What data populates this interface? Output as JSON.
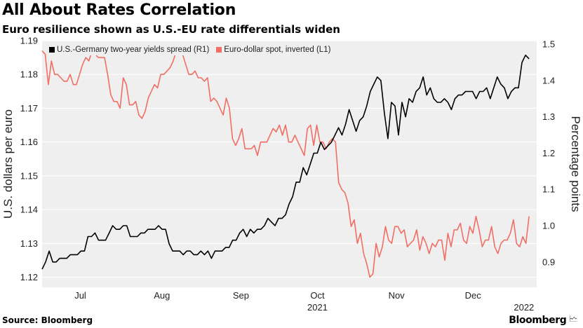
{
  "header": {
    "title": "All About Rates Correlation",
    "subtitle": "Euro resilience shown as U.S.-EU rate differentials widen"
  },
  "footer": {
    "source": "Source: Bloomberg",
    "brand": "Bloomberg",
    "brand_icon": "chart-icon"
  },
  "colors": {
    "spread": "#000000",
    "euro": "#f06e63",
    "plot_bg": "#efefef",
    "gridline": "#ffffff"
  },
  "chart_data": {
    "type": "line",
    "title": "All About Rates Correlation",
    "subtitle": "Euro resilience shown as U.S.-EU rate differentials widen",
    "legend_position": "top-left",
    "grid": true,
    "x_ticks": [
      {
        "date": "2021-07-15",
        "label": "Jul"
      },
      {
        "date": "2021-08-16",
        "label": "Aug"
      },
      {
        "date": "2021-09-16",
        "label": "Sep"
      },
      {
        "date": "2021-10-16",
        "label": "Oct"
      },
      {
        "date": "2021-11-16",
        "label": "Nov"
      },
      {
        "date": "2021-12-16",
        "label": "Dec"
      }
    ],
    "x_year_labels": [
      {
        "date": "2021-10-16",
        "label": "2021"
      },
      {
        "date": "2022-01-05",
        "label": "2022"
      }
    ],
    "x_range": [
      "2021-06-30",
      "2022-01-10"
    ],
    "y_left": {
      "label": "U.S. dollars per euro",
      "inverted": true,
      "range": [
        1.19,
        1.117
      ],
      "ticks": [
        1.19,
        1.18,
        1.17,
        1.16,
        1.15,
        1.14,
        1.13,
        1.12
      ]
    },
    "y_right": {
      "label": "Percentage points",
      "range": [
        0.83,
        1.51
      ],
      "ticks": [
        1.5,
        1.4,
        1.3,
        1.2,
        1.1,
        1.0,
        0.9
      ]
    },
    "series": [
      {
        "name": "U.S.-Germany two-year yields spread (R1)",
        "axis": "right",
        "color": "#000000",
        "start": "2021-06-30",
        "values": [
          0.88,
          0.9,
          0.93,
          0.9,
          0.9,
          0.91,
          0.91,
          0.91,
          0.92,
          0.92,
          0.92,
          0.93,
          0.93,
          0.97,
          0.97,
          0.98,
          0.96,
          0.96,
          0.96,
          0.98,
          1.0,
          0.99,
          0.99,
          1.0,
          1.0,
          0.97,
          0.97,
          0.97,
          0.98,
          0.98,
          0.99,
          0.99,
          0.99,
          1.0,
          0.99,
          0.99,
          0.95,
          0.93,
          0.93,
          0.93,
          0.92,
          0.93,
          0.93,
          0.92,
          0.92,
          0.93,
          0.92,
          0.93,
          0.91,
          0.93,
          0.93,
          0.93,
          0.94,
          0.94,
          0.96,
          0.96,
          0.98,
          0.99,
          0.97,
          0.99,
          0.98,
          0.99,
          0.99,
          1.0,
          1.02,
          1.01,
          1.0,
          1.02,
          1.02,
          1.03,
          1.06,
          1.08,
          1.12,
          1.12,
          1.16,
          1.14,
          1.17,
          1.2,
          1.2,
          1.23,
          1.21,
          1.22,
          1.23,
          1.25,
          1.27,
          1.25,
          1.28,
          1.32,
          1.29,
          1.26,
          1.29,
          1.3,
          1.33,
          1.37,
          1.39,
          1.41,
          1.4,
          1.31,
          1.24,
          1.34,
          1.33,
          1.25,
          1.34,
          1.3,
          1.35,
          1.34,
          1.37,
          1.38,
          1.41,
          1.36,
          1.38,
          1.35,
          1.34,
          1.34,
          1.35,
          1.34,
          1.32,
          1.35,
          1.36,
          1.36,
          1.37,
          1.37,
          1.37,
          1.35,
          1.37,
          1.37,
          1.38,
          1.35,
          1.38,
          1.41,
          1.39,
          1.38,
          1.35,
          1.37,
          1.38,
          1.38,
          1.45,
          1.47,
          1.46
        ]
      },
      {
        "name": "Euro-dollar spot, inverted (L1)",
        "axis": "left",
        "color": "#f06e63",
        "start": "2021-06-30",
        "values": [
          1.187,
          1.186,
          1.177,
          1.184,
          1.18,
          1.18,
          1.179,
          1.178,
          1.178,
          1.18,
          1.177,
          1.177,
          1.18,
          1.183,
          1.185,
          1.184,
          1.187,
          1.186,
          1.185,
          1.185,
          1.185,
          1.18,
          1.174,
          1.172,
          1.172,
          1.17,
          1.179,
          1.177,
          1.171,
          1.171,
          1.172,
          1.168,
          1.167,
          1.169,
          1.173,
          1.175,
          1.177,
          1.176,
          1.18,
          1.18,
          1.181,
          1.182,
          1.184,
          1.187,
          1.187,
          1.186,
          1.183,
          1.18,
          1.18,
          1.181,
          1.179,
          1.179,
          1.178,
          1.179,
          1.172,
          1.173,
          1.172,
          1.17,
          1.168,
          1.173,
          1.17,
          1.161,
          1.159,
          1.161,
          1.164,
          1.158,
          1.158,
          1.158,
          1.159,
          1.156,
          1.16,
          1.16,
          1.16,
          1.162,
          1.164,
          1.163,
          1.165,
          1.162,
          1.165,
          1.16,
          1.16,
          1.162,
          1.16,
          1.158,
          1.156,
          1.164,
          1.165,
          1.159,
          1.165,
          1.16,
          1.16,
          1.158,
          1.16,
          1.161,
          1.16,
          1.148,
          1.146,
          1.145,
          1.142,
          1.135,
          1.137,
          1.13,
          1.133,
          1.127,
          1.124,
          1.12,
          1.121,
          1.13,
          1.126,
          1.129,
          1.135,
          1.131,
          1.13,
          1.135,
          1.135,
          1.133,
          1.134,
          1.129,
          1.13,
          1.131,
          1.134,
          1.128,
          1.132,
          1.13,
          1.127,
          1.13,
          1.129,
          1.131,
          1.131,
          1.125,
          1.133,
          1.129,
          1.134,
          1.134,
          1.136,
          1.131,
          1.13,
          1.135,
          1.133,
          1.138,
          1.134,
          1.129,
          1.131,
          1.131,
          1.135,
          1.129,
          1.127,
          1.13,
          1.131,
          1.131,
          1.133,
          1.137,
          1.13,
          1.129,
          1.132,
          1.13,
          1.138
        ]
      }
    ]
  }
}
